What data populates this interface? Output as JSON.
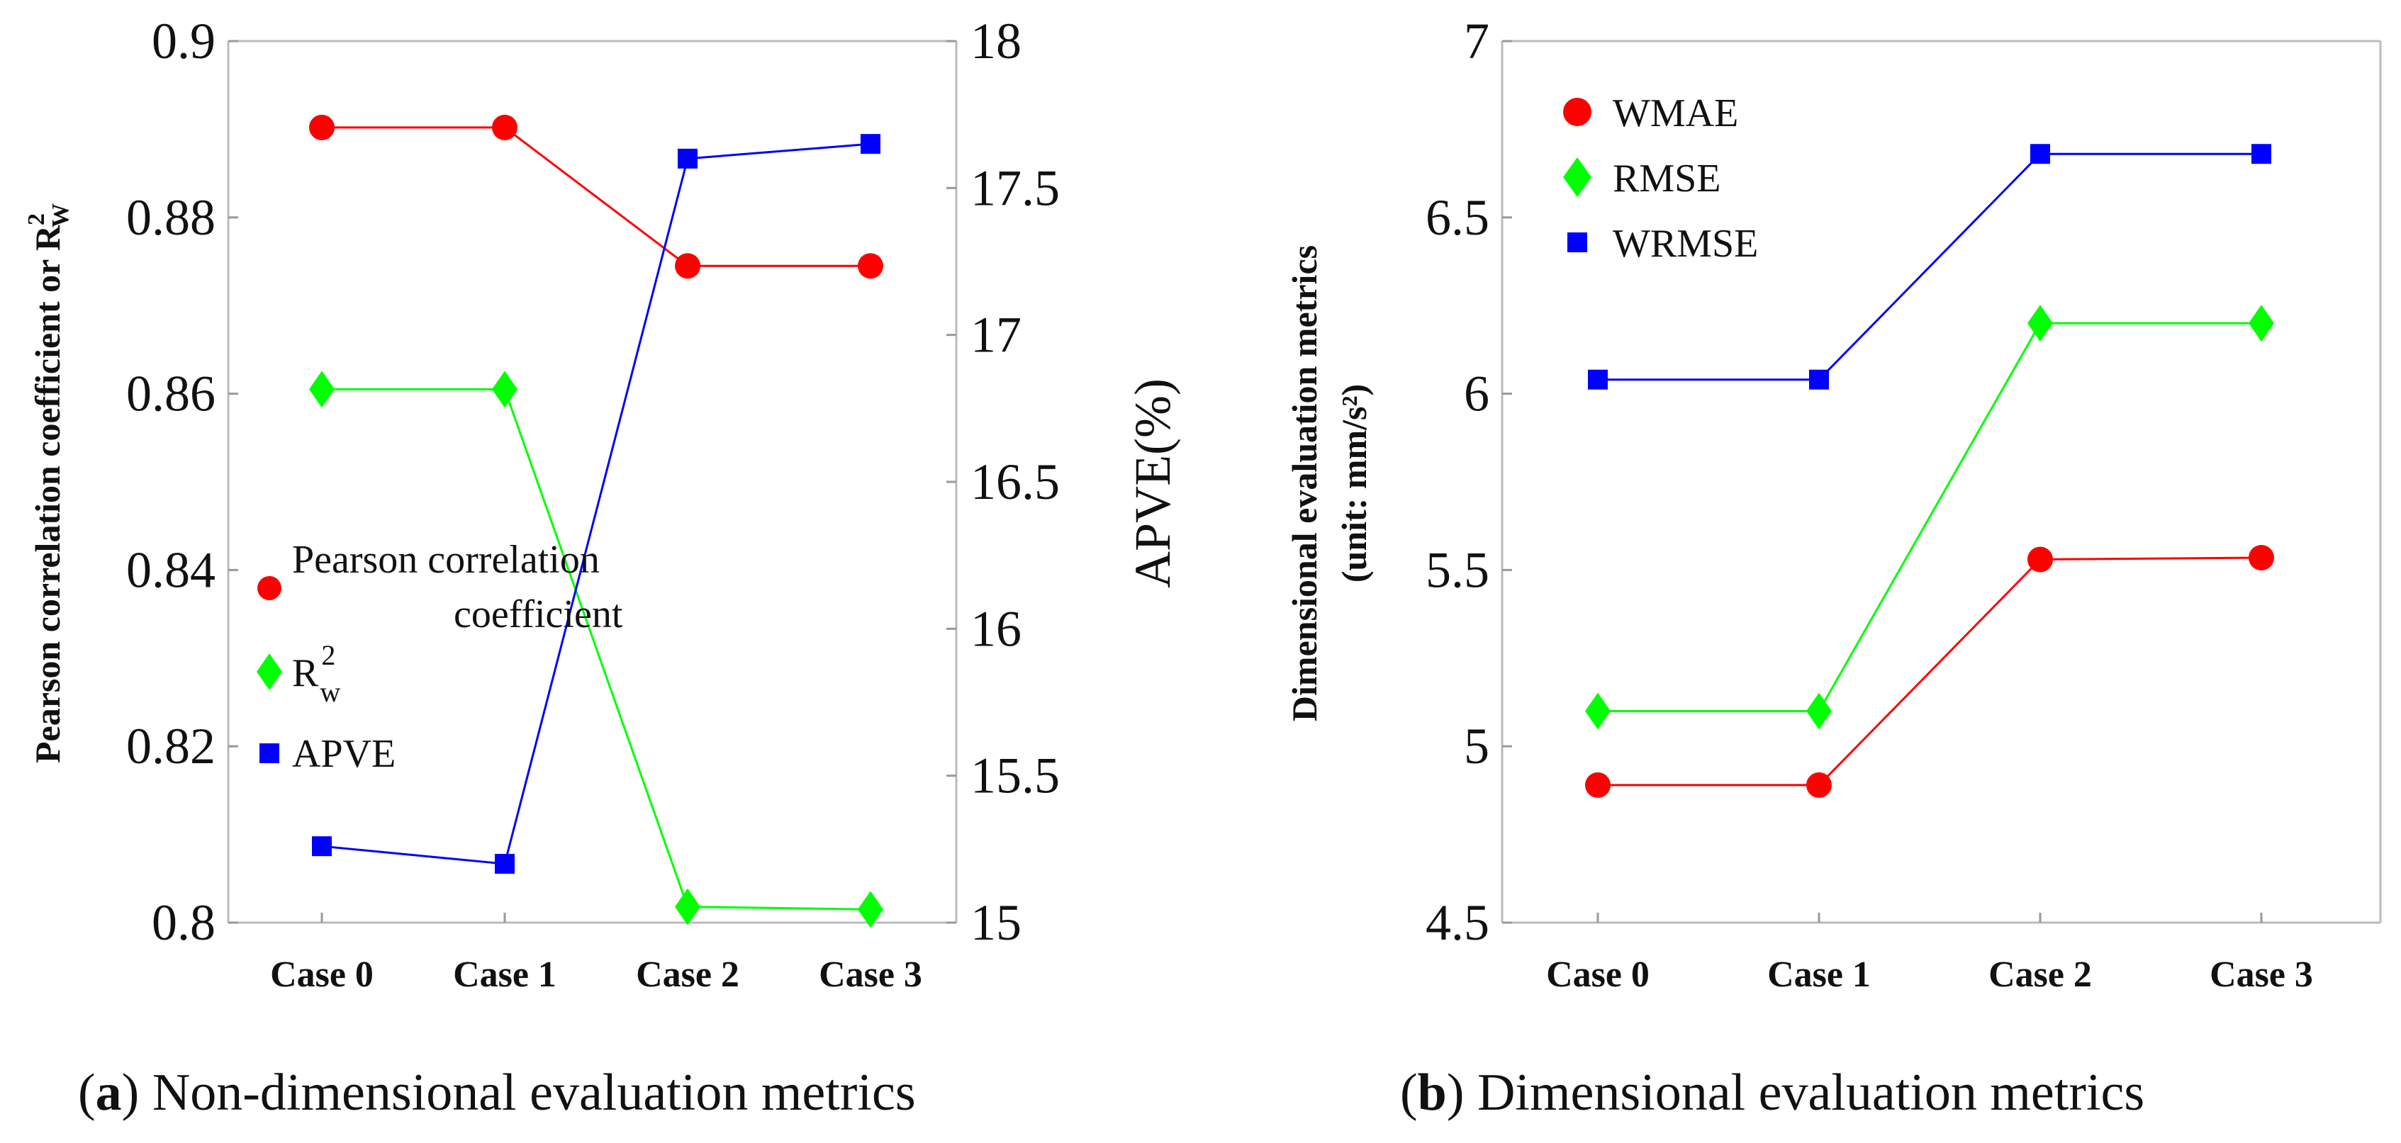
{
  "chart_data": [
    {
      "id": "a",
      "type": "line",
      "categories": [
        "Case 0",
        "Case 1",
        "Case 2",
        "Case 3"
      ],
      "ylabel": "Pearson correlation coefficient or R",
      "ylabel_sup": "2",
      "ylabel_sub": "W",
      "ylim": [
        0.8,
        0.9
      ],
      "yticks": [
        "0.8",
        "0.82",
        "0.84",
        "0.86",
        "0.88",
        "0.9"
      ],
      "y2label": "APVE(%)",
      "y2lim": [
        15,
        18
      ],
      "y2ticks": [
        "15",
        "15.5",
        "16",
        "16.5",
        "17",
        "17.5",
        "18"
      ],
      "series": [
        {
          "name": "Pearson correlation coefficient",
          "legend_line1": "Pearson correlation",
          "legend_line2": "coefficient",
          "axis": "left",
          "marker": "circle",
          "color": "#ff0000",
          "values": [
            0.8902,
            0.8902,
            0.8745,
            0.8745
          ]
        },
        {
          "name": "R2w",
          "legend_main": "R",
          "legend_sup": "2",
          "legend_sub": "w",
          "axis": "left",
          "marker": "diamond",
          "color": "#00ff00",
          "values": [
            0.8605,
            0.8605,
            0.8018,
            0.8015
          ]
        },
        {
          "name": "APVE",
          "axis": "right",
          "marker": "square",
          "color": "#0000ff",
          "values": [
            15.26,
            15.2,
            17.6,
            17.65
          ]
        }
      ],
      "caption_label": "a",
      "caption_text": "Non-dimensional evaluation metrics"
    },
    {
      "id": "b",
      "type": "line",
      "categories": [
        "Case 0",
        "Case 1",
        "Case 2",
        "Case 3"
      ],
      "ylabel_line1": "Dimensional evaluation metrics",
      "ylabel_line2": "(unit: mm/s²)",
      "ylim": [
        4.5,
        7
      ],
      "yticks": [
        "4.5",
        "5",
        "5.5",
        "6",
        "6.5",
        "7"
      ],
      "series": [
        {
          "name": "WMAE",
          "marker": "circle",
          "color": "#ff0000",
          "values": [
            4.89,
            4.89,
            5.53,
            5.535
          ]
        },
        {
          "name": "RMSE",
          "marker": "diamond",
          "color": "#00ff00",
          "values": [
            5.1,
            5.1,
            6.2,
            6.2
          ]
        },
        {
          "name": "WRMSE",
          "marker": "square",
          "color": "#0000ff",
          "values": [
            6.04,
            6.04,
            6.68,
            6.68
          ]
        }
      ],
      "caption_label": "b",
      "caption_text": "Dimensional evaluation metrics"
    }
  ]
}
